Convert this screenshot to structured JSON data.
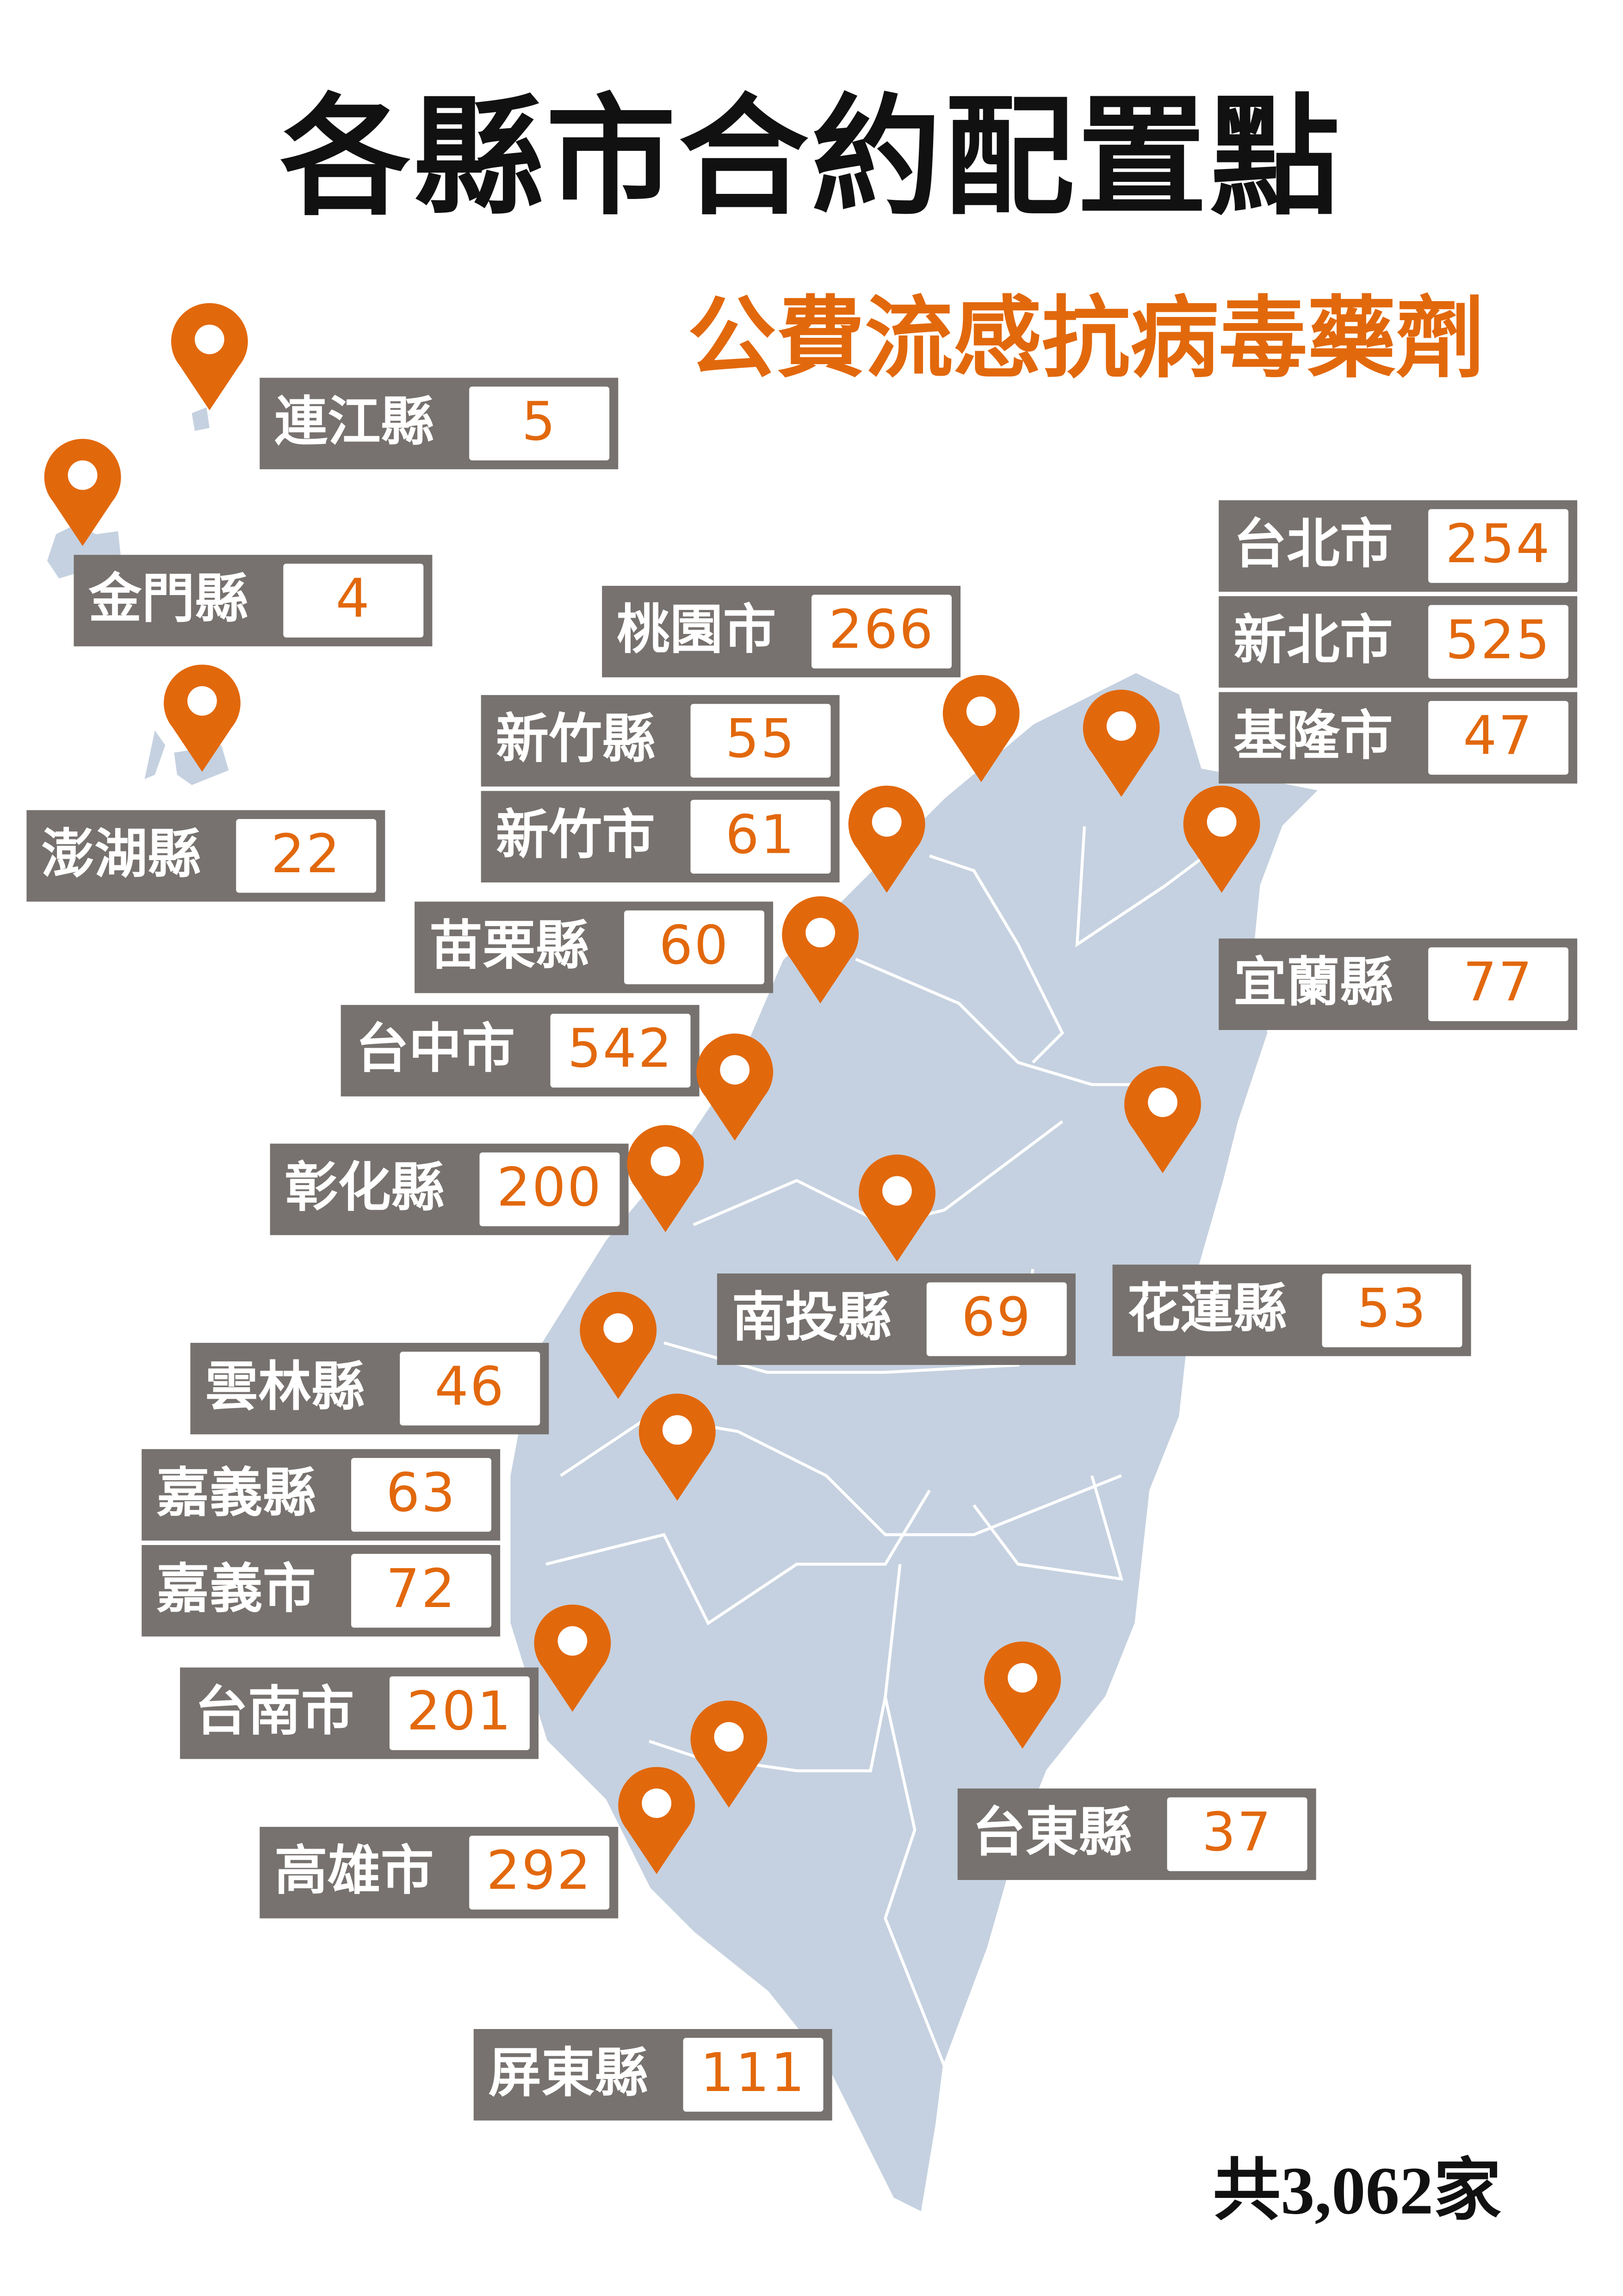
{
  "title": "各縣市合約配置點",
  "subtitle": "公費流感抗病毒藥劑",
  "total": "共3,062家",
  "colors": {
    "accent": "#e2680c",
    "label_bg": "#77726f",
    "map_fill": "#c5d1e0",
    "title": "#111111"
  },
  "pin_icon": "map-pin-icon",
  "labels": [
    {
      "name": "連江縣",
      "count": "5"
    },
    {
      "name": "金門縣",
      "count": "4"
    },
    {
      "name": "澎湖縣",
      "count": "22"
    },
    {
      "name": "桃園市",
      "count": "266"
    },
    {
      "name": "新竹縣",
      "count": "55"
    },
    {
      "name": "新竹市",
      "count": "61"
    },
    {
      "name": "苗栗縣",
      "count": "60"
    },
    {
      "name": "台中市",
      "count": "542"
    },
    {
      "name": "彰化縣",
      "count": "200"
    },
    {
      "name": "南投縣",
      "count": "69"
    },
    {
      "name": "花蓮縣",
      "count": "53"
    },
    {
      "name": "雲林縣",
      "count": "46"
    },
    {
      "name": "嘉義縣",
      "count": "63"
    },
    {
      "name": "嘉義市",
      "count": "72"
    },
    {
      "name": "台南市",
      "count": "201"
    },
    {
      "name": "高雄市",
      "count": "292"
    },
    {
      "name": "屏東縣",
      "count": "111"
    },
    {
      "name": "台東縣",
      "count": "37"
    },
    {
      "name": "台北市",
      "count": "254"
    },
    {
      "name": "新北市",
      "count": "525"
    },
    {
      "name": "基隆市",
      "count": "47"
    },
    {
      "name": "宜蘭縣",
      "count": "77"
    }
  ]
}
